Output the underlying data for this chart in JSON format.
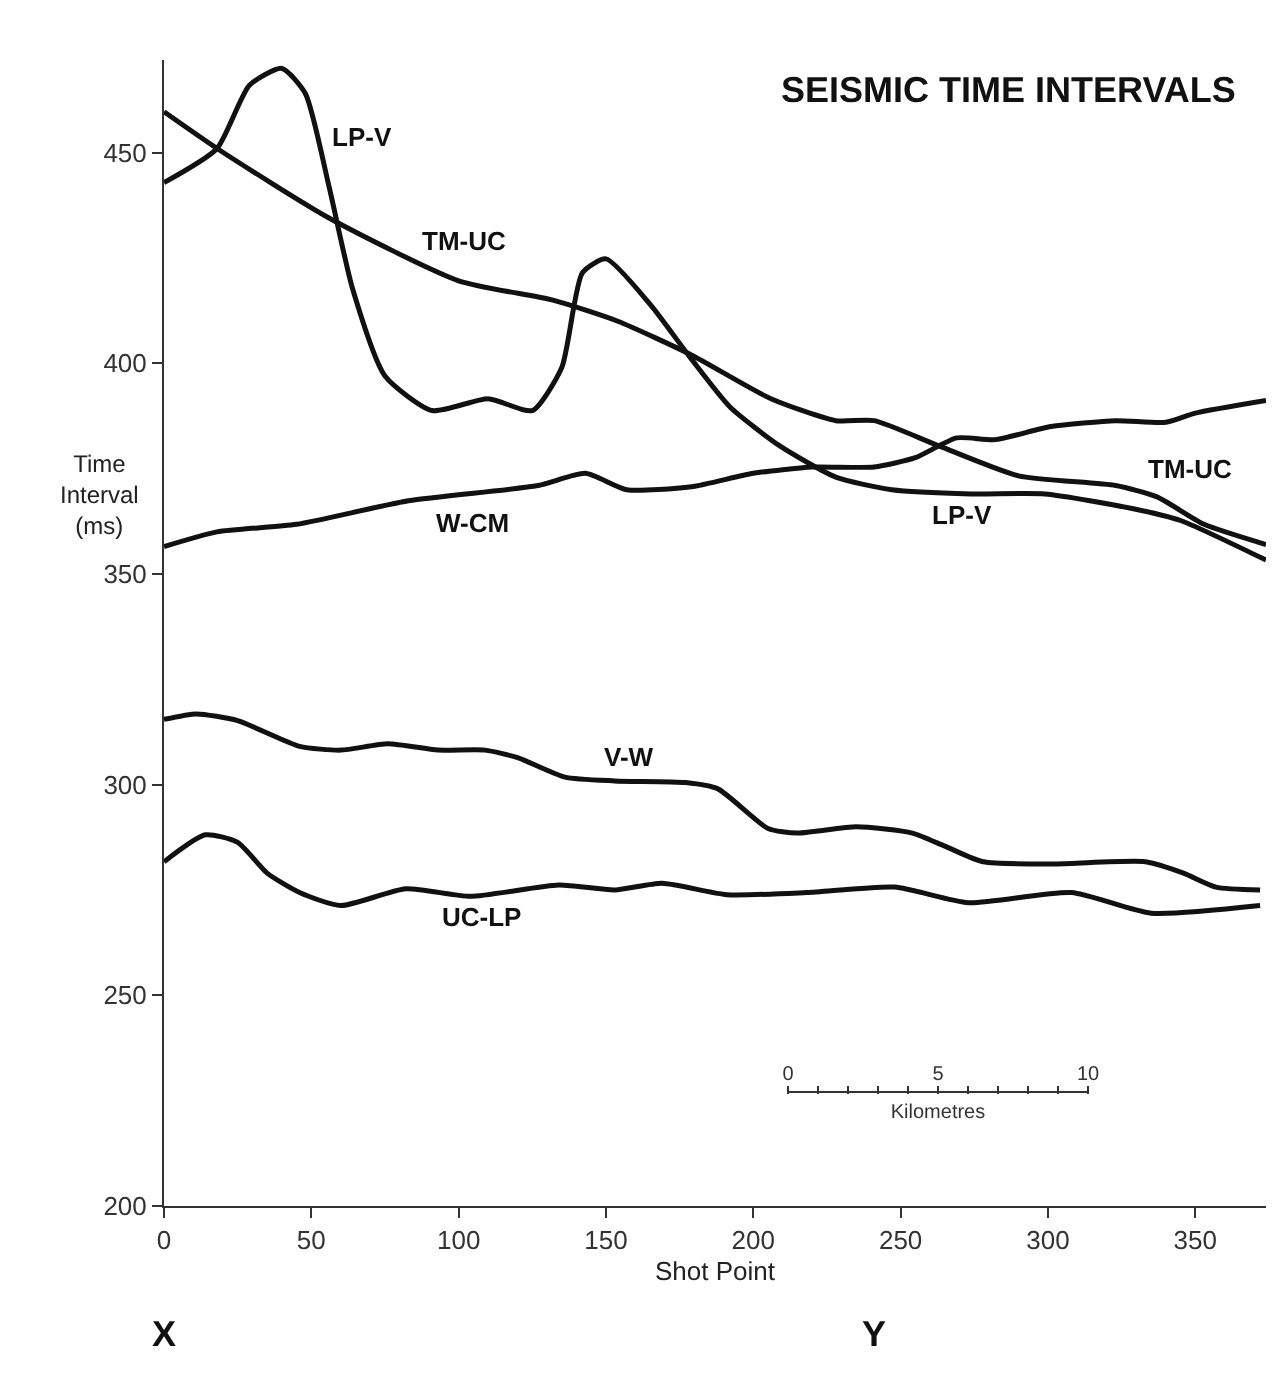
{
  "chart_data": {
    "type": "line",
    "title": "SEISMIC TIME INTERVALS",
    "xlabel": "Shot Point",
    "ylabel": "Time Interval (ms)",
    "xlim": [
      0,
      374
    ],
    "xticks": [
      0,
      50,
      100,
      150,
      200,
      250,
      300,
      350
    ],
    "ylim": [
      200,
      472
    ],
    "yticks": [
      200,
      250,
      300,
      350,
      400,
      450
    ],
    "grid": false,
    "legend": false,
    "marker": "none",
    "line_style": "solid",
    "series": [
      {
        "name": "TM-UC",
        "color": "#111111",
        "x": [
          0,
          18,
          56,
          100,
          132,
          154,
          179,
          206,
          228,
          241,
          263,
          290,
          323,
          337,
          353,
          374
        ],
        "values": [
          459.7,
          451,
          434.5,
          419.6,
          415,
          410,
          402,
          391.6,
          386.4,
          386.4,
          380.4,
          373.3,
          371,
          368.3,
          361.8,
          357
        ]
      },
      {
        "name": "LP-V",
        "color": "#111111",
        "x": [
          0,
          18,
          29,
          40,
          48,
          56,
          64,
          75,
          91,
          110,
          125,
          135,
          142,
          150,
          165,
          179,
          192,
          209,
          228,
          247,
          274,
          299,
          329,
          345,
          374
        ],
        "values": [
          442.9,
          451,
          466,
          470,
          464,
          442,
          417.7,
          397,
          388.8,
          391.6,
          388.8,
          399,
          421.5,
          424.8,
          414,
          401,
          389.7,
          380.4,
          373,
          370,
          369,
          369,
          365.5,
          362.7,
          353.3
        ]
      },
      {
        "name": "W-CM",
        "color": "#111111",
        "x": [
          0,
          18,
          45,
          83,
          127,
          143,
          157,
          179,
          200,
          220,
          241,
          255,
          269,
          282,
          301,
          323,
          340,
          350,
          374
        ],
        "values": [
          356.5,
          360,
          361.8,
          367.4,
          371,
          373.9,
          370,
          370.7,
          373.9,
          375.4,
          375.4,
          377.6,
          382.3,
          381.9,
          385,
          386.4,
          386,
          388.2,
          391.2
        ]
      },
      {
        "name": "V-W",
        "color": "#111111",
        "x": [
          0,
          11,
          25,
          46,
          60,
          76,
          93,
          109,
          120,
          136,
          153,
          177,
          188,
          205,
          215,
          235,
          254,
          265,
          278,
          303,
          333,
          346,
          357,
          372
        ],
        "values": [
          315.5,
          316.8,
          315.2,
          309.1,
          308.2,
          309.7,
          308.2,
          308.2,
          306.4,
          301.8,
          300.9,
          300.5,
          299,
          289.6,
          288.5,
          290,
          288.5,
          285.4,
          281.7,
          281.2,
          281.7,
          279,
          275.7,
          275
        ]
      },
      {
        "name": "UC-LP",
        "color": "#111111",
        "x": [
          0,
          14,
          25,
          35,
          46,
          60,
          82,
          104,
          134,
          153,
          169,
          191,
          218,
          248,
          273,
          308,
          335,
          372
        ],
        "values": [
          281.7,
          288.1,
          286.3,
          279,
          274.4,
          271.3,
          275.3,
          273.5,
          276.2,
          275,
          276.6,
          273.9,
          274.4,
          275.7,
          272,
          274.4,
          269.5,
          271.3
        ]
      }
    ],
    "annotations": [
      "X",
      "Y",
      "0",
      "5",
      "10",
      "Kilometres"
    ]
  }
}
